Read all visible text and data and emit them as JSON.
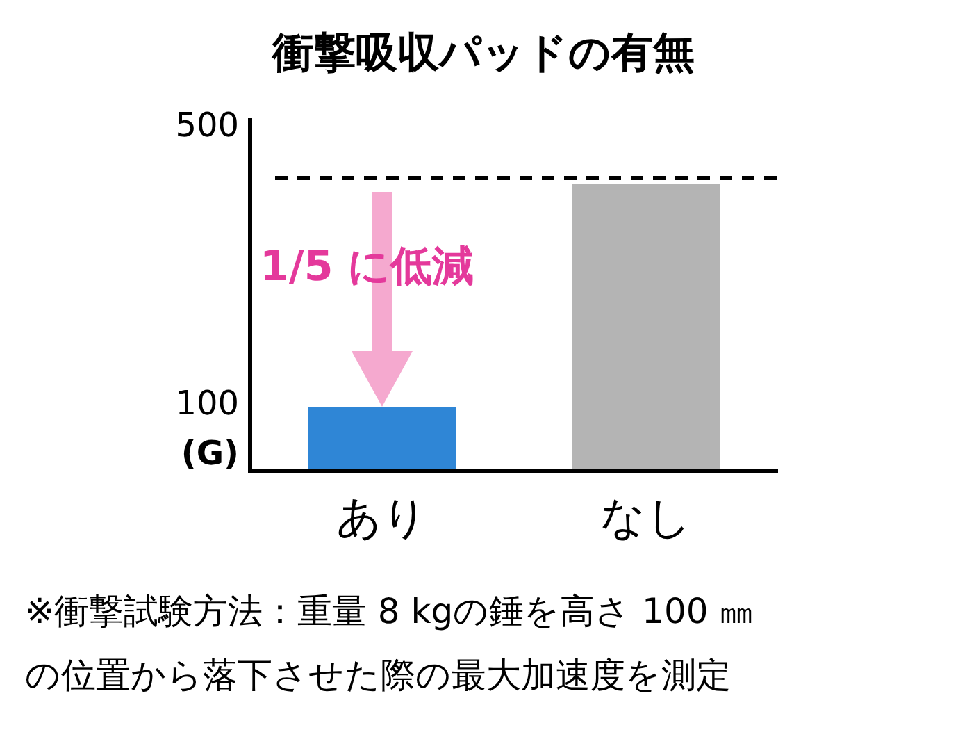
{
  "chart_data": {
    "type": "bar",
    "title": "衝撃吸収パッドの有無",
    "ylabel": "(G)",
    "categories": [
      "あり",
      "なし"
    ],
    "values": [
      95,
      415
    ],
    "colors": [
      "#2f86d6",
      "#b4b4b4"
    ],
    "ylim": [
      0,
      510
    ],
    "yticks": [
      500,
      100
    ],
    "ref_lines": [
      {
        "axis": "y",
        "value": 424,
        "line_style": "dashed",
        "color": "#000000"
      }
    ],
    "annotations": [
      "1/5 に低減",
      "※衝撃試験方法：重量 8 kgの錘を高さ 100 ㎜",
      "の位置から落下させた際の最大加速度を測定"
    ]
  }
}
